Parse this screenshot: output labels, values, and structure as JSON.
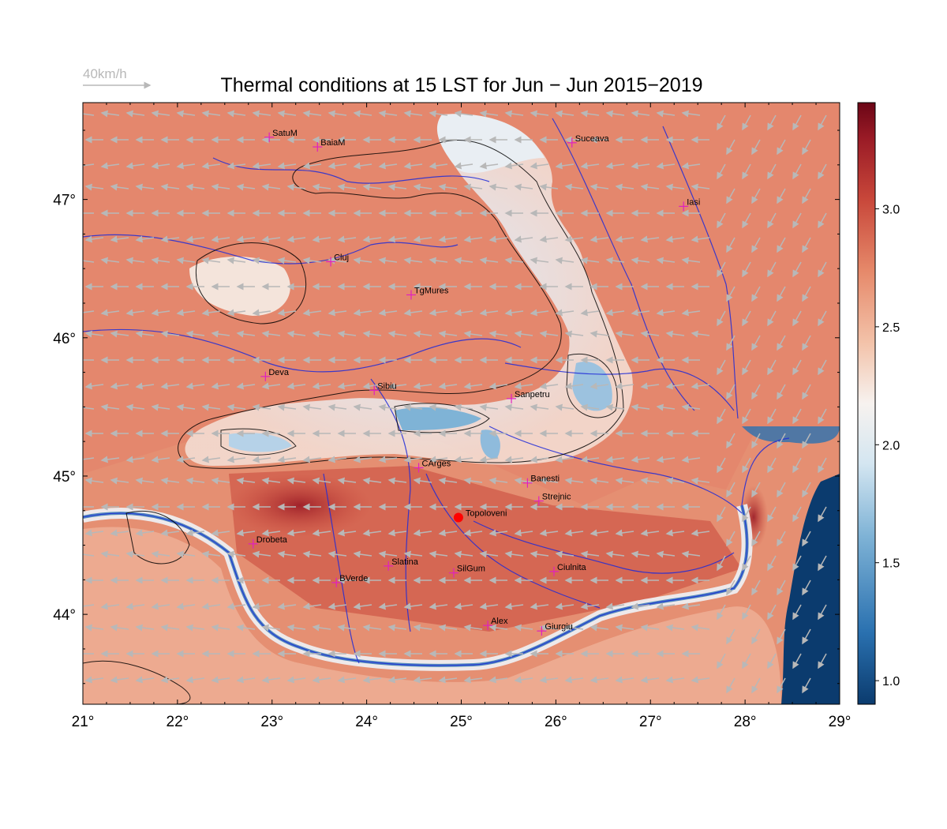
{
  "title": "Thermal conditions at 15 LST for Jun − Jun  2015−2019",
  "wind_reference": {
    "label": "40km/h",
    "color": "#b8b8b8"
  },
  "axes": {
    "lon_ticks": [
      21,
      22,
      23,
      24,
      25,
      26,
      27,
      28,
      29
    ],
    "lon_labels": [
      "21°",
      "22°",
      "23°",
      "24°",
      "25°",
      "26°",
      "27°",
      "28°",
      "29°"
    ],
    "lat_ticks": [
      44,
      45,
      46,
      47
    ],
    "lat_labels": [
      "44°",
      "45°",
      "46°",
      "47°"
    ],
    "lon_range": [
      21,
      29
    ],
    "lat_range": [
      43.35,
      47.7
    ]
  },
  "colorbar": {
    "min": 0.9,
    "max": 3.45,
    "ticks": [
      1.0,
      1.5,
      2.0,
      2.5,
      3.0
    ],
    "tick_labels": [
      "1.0",
      "1.5",
      "2.0",
      "2.5",
      "3.0"
    ],
    "colors": [
      "#0b3b6e",
      "#2a71b0",
      "#7fb3d6",
      "#d4e6f1",
      "#f7f2ef",
      "#f3c3aa",
      "#e6896a",
      "#c8473a",
      "#9a1b26",
      "#6b0616"
    ]
  },
  "cities": [
    {
      "name": "SatuM",
      "lon": 22.97,
      "lat": 47.45
    },
    {
      "name": "BaiaM",
      "lon": 23.48,
      "lat": 47.38
    },
    {
      "name": "Suceava",
      "lon": 26.17,
      "lat": 47.41
    },
    {
      "name": "Iasi",
      "lon": 27.35,
      "lat": 46.95
    },
    {
      "name": "Cluj",
      "lon": 23.62,
      "lat": 46.55
    },
    {
      "name": "TgMures",
      "lon": 24.47,
      "lat": 46.31
    },
    {
      "name": "Deva",
      "lon": 22.93,
      "lat": 45.72
    },
    {
      "name": "Sibiu",
      "lon": 24.08,
      "lat": 45.62
    },
    {
      "name": "Sanpetru",
      "lon": 25.53,
      "lat": 45.56
    },
    {
      "name": "CArges",
      "lon": 24.55,
      "lat": 45.06
    },
    {
      "name": "Banesti",
      "lon": 25.7,
      "lat": 44.95
    },
    {
      "name": "Strejnic",
      "lon": 25.82,
      "lat": 44.82
    },
    {
      "name": "Topoloveni",
      "lon": 24.97,
      "lat": 44.7,
      "highlight": true
    },
    {
      "name": "Drobeta",
      "lon": 22.8,
      "lat": 44.51
    },
    {
      "name": "BVerde",
      "lon": 23.68,
      "lat": 44.23
    },
    {
      "name": "Slatina",
      "lon": 24.23,
      "lat": 44.35
    },
    {
      "name": "SilGum",
      "lon": 24.92,
      "lat": 44.3
    },
    {
      "name": "Ciulnita",
      "lon": 25.98,
      "lat": 44.31
    },
    {
      "name": "Alex",
      "lon": 25.28,
      "lat": 43.92
    },
    {
      "name": "Giurgiu",
      "lon": 25.85,
      "lat": 43.88
    }
  ]
}
